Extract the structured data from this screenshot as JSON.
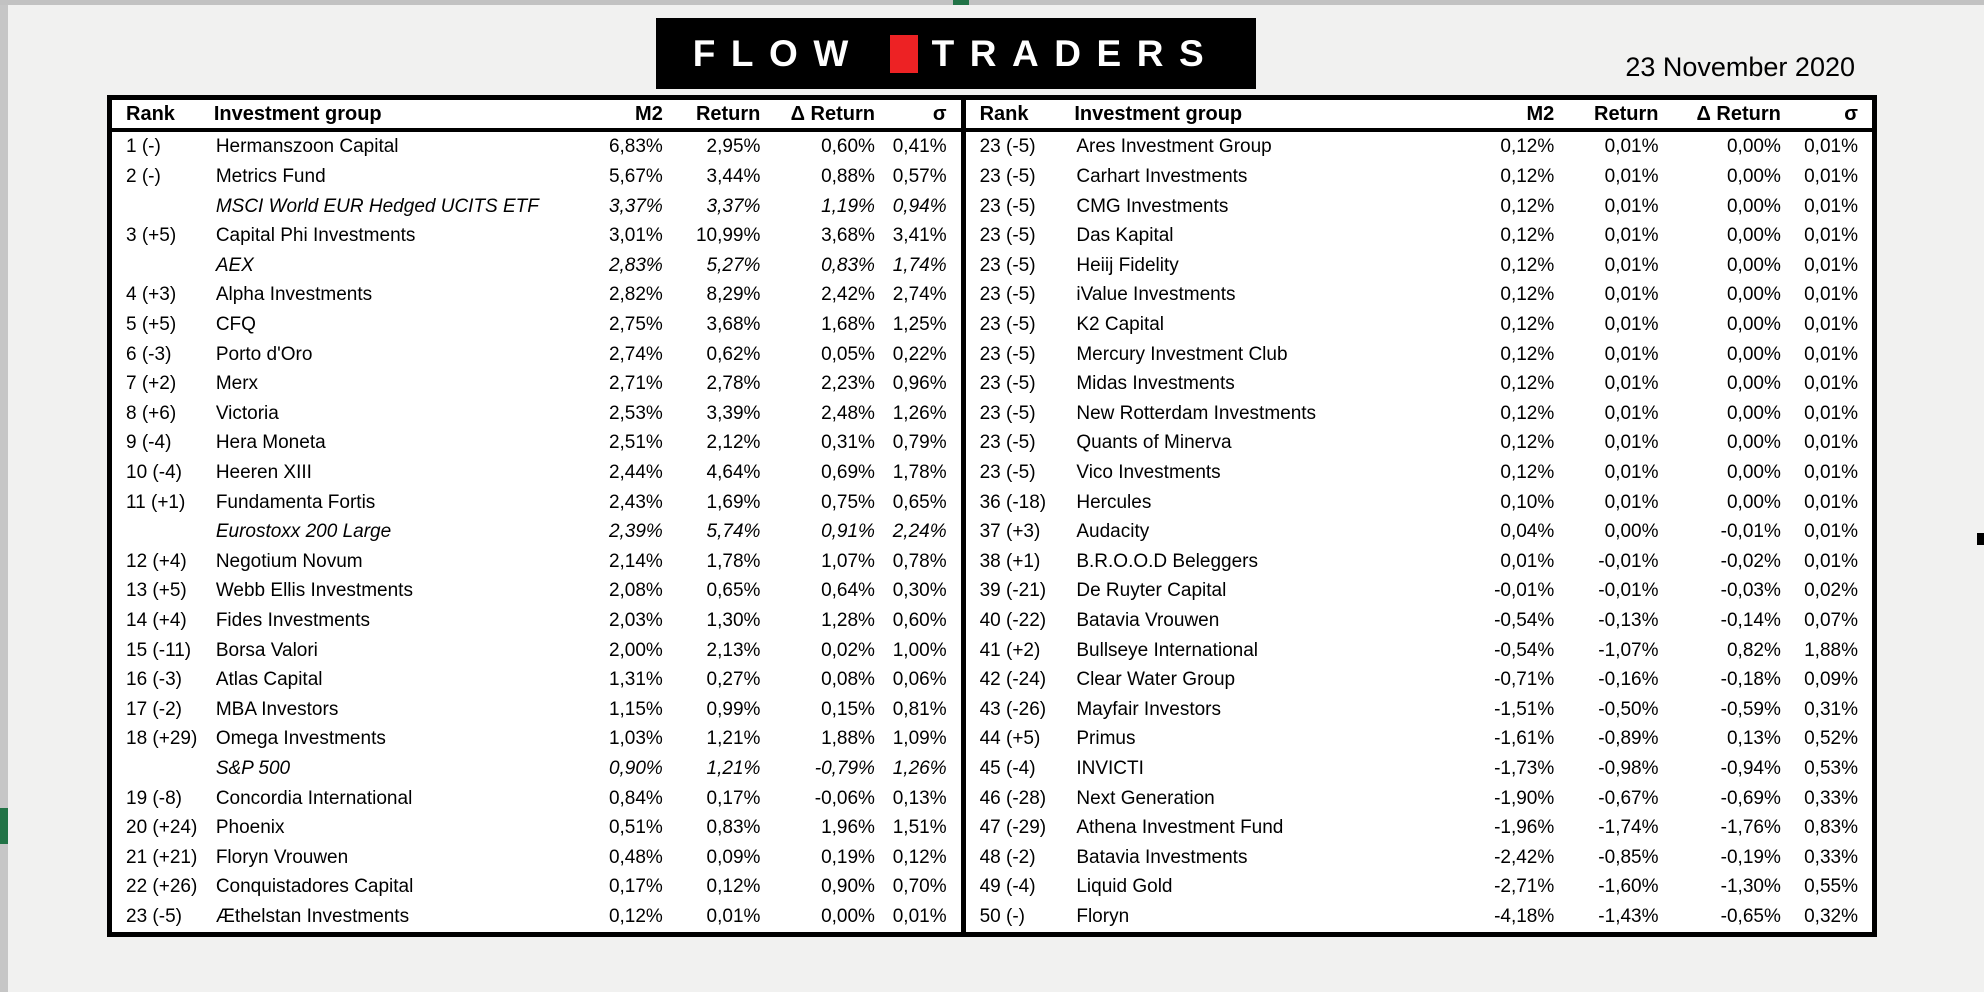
{
  "page": {
    "date": "23 November 2020",
    "background_color": "#f1f1f0"
  },
  "logo": {
    "word_left": "FLOW",
    "word_right": "TRADERS",
    "square_color": "#ed2224",
    "banner_color": "#000000"
  },
  "accents": {
    "excel_green": "#217346",
    "edge_strip_gray": "#c6c6c6"
  },
  "table_headers": [
    "Rank",
    "Investment group",
    "M2",
    "Return",
    "Δ Return",
    "σ"
  ],
  "tables": [
    {
      "rows": [
        [
          "1 (-)",
          "Hermanszoon Capital",
          "6,83%",
          "2,95%",
          "0,60%",
          "0,41%"
        ],
        [
          "2 (-)",
          "Metrics Fund",
          "5,67%",
          "3,44%",
          "0,88%",
          "0,57%"
        ],
        [
          "",
          "MSCI World EUR Hedged UCITS ETF",
          "3,37%",
          "3,37%",
          "1,19%",
          "0,94%",
          true
        ],
        [
          "3 (+5)",
          "Capital Phi Investments",
          "3,01%",
          "10,99%",
          "3,68%",
          "3,41%"
        ],
        [
          "",
          "AEX",
          "2,83%",
          "5,27%",
          "0,83%",
          "1,74%",
          true
        ],
        [
          "4 (+3)",
          "Alpha Investments",
          "2,82%",
          "8,29%",
          "2,42%",
          "2,74%"
        ],
        [
          "5 (+5)",
          "CFQ",
          "2,75%",
          "3,68%",
          "1,68%",
          "1,25%"
        ],
        [
          "6 (-3)",
          "Porto d'Oro",
          "2,74%",
          "0,62%",
          "0,05%",
          "0,22%"
        ],
        [
          "7 (+2)",
          "Merx",
          "2,71%",
          "2,78%",
          "2,23%",
          "0,96%"
        ],
        [
          "8 (+6)",
          "Victoria",
          "2,53%",
          "3,39%",
          "2,48%",
          "1,26%"
        ],
        [
          "9 (-4)",
          "Hera Moneta",
          "2,51%",
          "2,12%",
          "0,31%",
          "0,79%"
        ],
        [
          "10 (-4)",
          "Heeren XIII",
          "2,44%",
          "4,64%",
          "0,69%",
          "1,78%"
        ],
        [
          "11 (+1)",
          "Fundamenta Fortis",
          "2,43%",
          "1,69%",
          "0,75%",
          "0,65%"
        ],
        [
          "",
          "Eurostoxx 200 Large",
          "2,39%",
          "5,74%",
          "0,91%",
          "2,24%",
          true
        ],
        [
          "12 (+4)",
          "Negotium Novum",
          "2,14%",
          "1,78%",
          "1,07%",
          "0,78%"
        ],
        [
          "13 (+5)",
          "Webb Ellis Investments",
          "2,08%",
          "0,65%",
          "0,64%",
          "0,30%"
        ],
        [
          "14 (+4)",
          "Fides Investments",
          "2,03%",
          "1,30%",
          "1,28%",
          "0,60%"
        ],
        [
          "15 (-11)",
          "Borsa Valori",
          "2,00%",
          "2,13%",
          "0,02%",
          "1,00%"
        ],
        [
          "16 (-3)",
          "Atlas Capital",
          "1,31%",
          "0,27%",
          "0,08%",
          "0,06%"
        ],
        [
          "17 (-2)",
          "MBA Investors",
          "1,15%",
          "0,99%",
          "0,15%",
          "0,81%"
        ],
        [
          "18 (+29)",
          "Omega Investments",
          "1,03%",
          "1,21%",
          "1,88%",
          "1,09%"
        ],
        [
          "",
          "S&P 500",
          "0,90%",
          "1,21%",
          "-0,79%",
          "1,26%",
          true
        ],
        [
          "19 (-8)",
          "Concordia International",
          "0,84%",
          "0,17%",
          "-0,06%",
          "0,13%"
        ],
        [
          "20 (+24)",
          "Phoenix",
          "0,51%",
          "0,83%",
          "1,96%",
          "1,51%"
        ],
        [
          "21 (+21)",
          "Floryn Vrouwen",
          "0,48%",
          "0,09%",
          "0,19%",
          "0,12%"
        ],
        [
          "22 (+26)",
          "Conquistadores Capital",
          "0,17%",
          "0,12%",
          "0,90%",
          "0,70%"
        ],
        [
          "23 (-5)",
          "Æthelstan Investments",
          "0,12%",
          "0,01%",
          "0,00%",
          "0,01%"
        ]
      ]
    },
    {
      "rows": [
        [
          "23 (-5)",
          "Ares Investment Group",
          "0,12%",
          "0,01%",
          "0,00%",
          "0,01%"
        ],
        [
          "23 (-5)",
          "Carhart Investments",
          "0,12%",
          "0,01%",
          "0,00%",
          "0,01%"
        ],
        [
          "23 (-5)",
          "CMG Investments",
          "0,12%",
          "0,01%",
          "0,00%",
          "0,01%"
        ],
        [
          "23 (-5)",
          "Das Kapital",
          "0,12%",
          "0,01%",
          "0,00%",
          "0,01%"
        ],
        [
          "23 (-5)",
          "Heiij Fidelity",
          "0,12%",
          "0,01%",
          "0,00%",
          "0,01%"
        ],
        [
          "23 (-5)",
          "iValue Investments",
          "0,12%",
          "0,01%",
          "0,00%",
          "0,01%"
        ],
        [
          "23 (-5)",
          "K2 Capital",
          "0,12%",
          "0,01%",
          "0,00%",
          "0,01%"
        ],
        [
          "23 (-5)",
          "Mercury Investment Club",
          "0,12%",
          "0,01%",
          "0,00%",
          "0,01%"
        ],
        [
          "23 (-5)",
          "Midas Investments",
          "0,12%",
          "0,01%",
          "0,00%",
          "0,01%"
        ],
        [
          "23 (-5)",
          "New Rotterdam Investments",
          "0,12%",
          "0,01%",
          "0,00%",
          "0,01%"
        ],
        [
          "23 (-5)",
          "Quants of Minerva",
          "0,12%",
          "0,01%",
          "0,00%",
          "0,01%"
        ],
        [
          "23 (-5)",
          "Vico Investments",
          "0,12%",
          "0,01%",
          "0,00%",
          "0,01%"
        ],
        [
          "36 (-18)",
          "Hercules",
          "0,10%",
          "0,01%",
          "0,00%",
          "0,01%"
        ],
        [
          "37 (+3)",
          "Audacity",
          "0,04%",
          "0,00%",
          "-0,01%",
          "0,01%"
        ],
        [
          "38 (+1)",
          "B.R.O.O.D Beleggers",
          "0,01%",
          "-0,01%",
          "-0,02%",
          "0,01%"
        ],
        [
          "39 (-21)",
          "De Ruyter Capital",
          "-0,01%",
          "-0,01%",
          "-0,03%",
          "0,02%"
        ],
        [
          "40 (-22)",
          "Batavia Vrouwen",
          "-0,54%",
          "-0,13%",
          "-0,14%",
          "0,07%"
        ],
        [
          "41 (+2)",
          "Bullseye International",
          "-0,54%",
          "-1,07%",
          "0,82%",
          "1,88%"
        ],
        [
          "42 (-24)",
          "Clear Water Group",
          "-0,71%",
          "-0,16%",
          "-0,18%",
          "0,09%"
        ],
        [
          "43 (-26)",
          "Mayfair Investors",
          "-1,51%",
          "-0,50%",
          "-0,59%",
          "0,31%"
        ],
        [
          "44 (+5)",
          "Primus",
          "-1,61%",
          "-0,89%",
          "0,13%",
          "0,52%"
        ],
        [
          "45 (-4)",
          "INVICTI",
          "-1,73%",
          "-0,98%",
          "-0,94%",
          "0,53%"
        ],
        [
          "46 (-28)",
          "Next Generation",
          "-1,90%",
          "-0,67%",
          "-0,69%",
          "0,33%"
        ],
        [
          "47 (-29)",
          "Athena Investment Fund",
          "-1,96%",
          "-1,74%",
          "-1,76%",
          "0,83%"
        ],
        [
          "48 (-2)",
          "Batavia Investments",
          "-2,42%",
          "-0,85%",
          "-0,19%",
          "0,33%"
        ],
        [
          "49 (-4)",
          "Liquid Gold",
          "-2,71%",
          "-1,60%",
          "-1,30%",
          "0,55%"
        ],
        [
          "50 (-)",
          "Floryn",
          "-4,18%",
          "-1,43%",
          "-0,65%",
          "0,32%"
        ]
      ]
    }
  ]
}
